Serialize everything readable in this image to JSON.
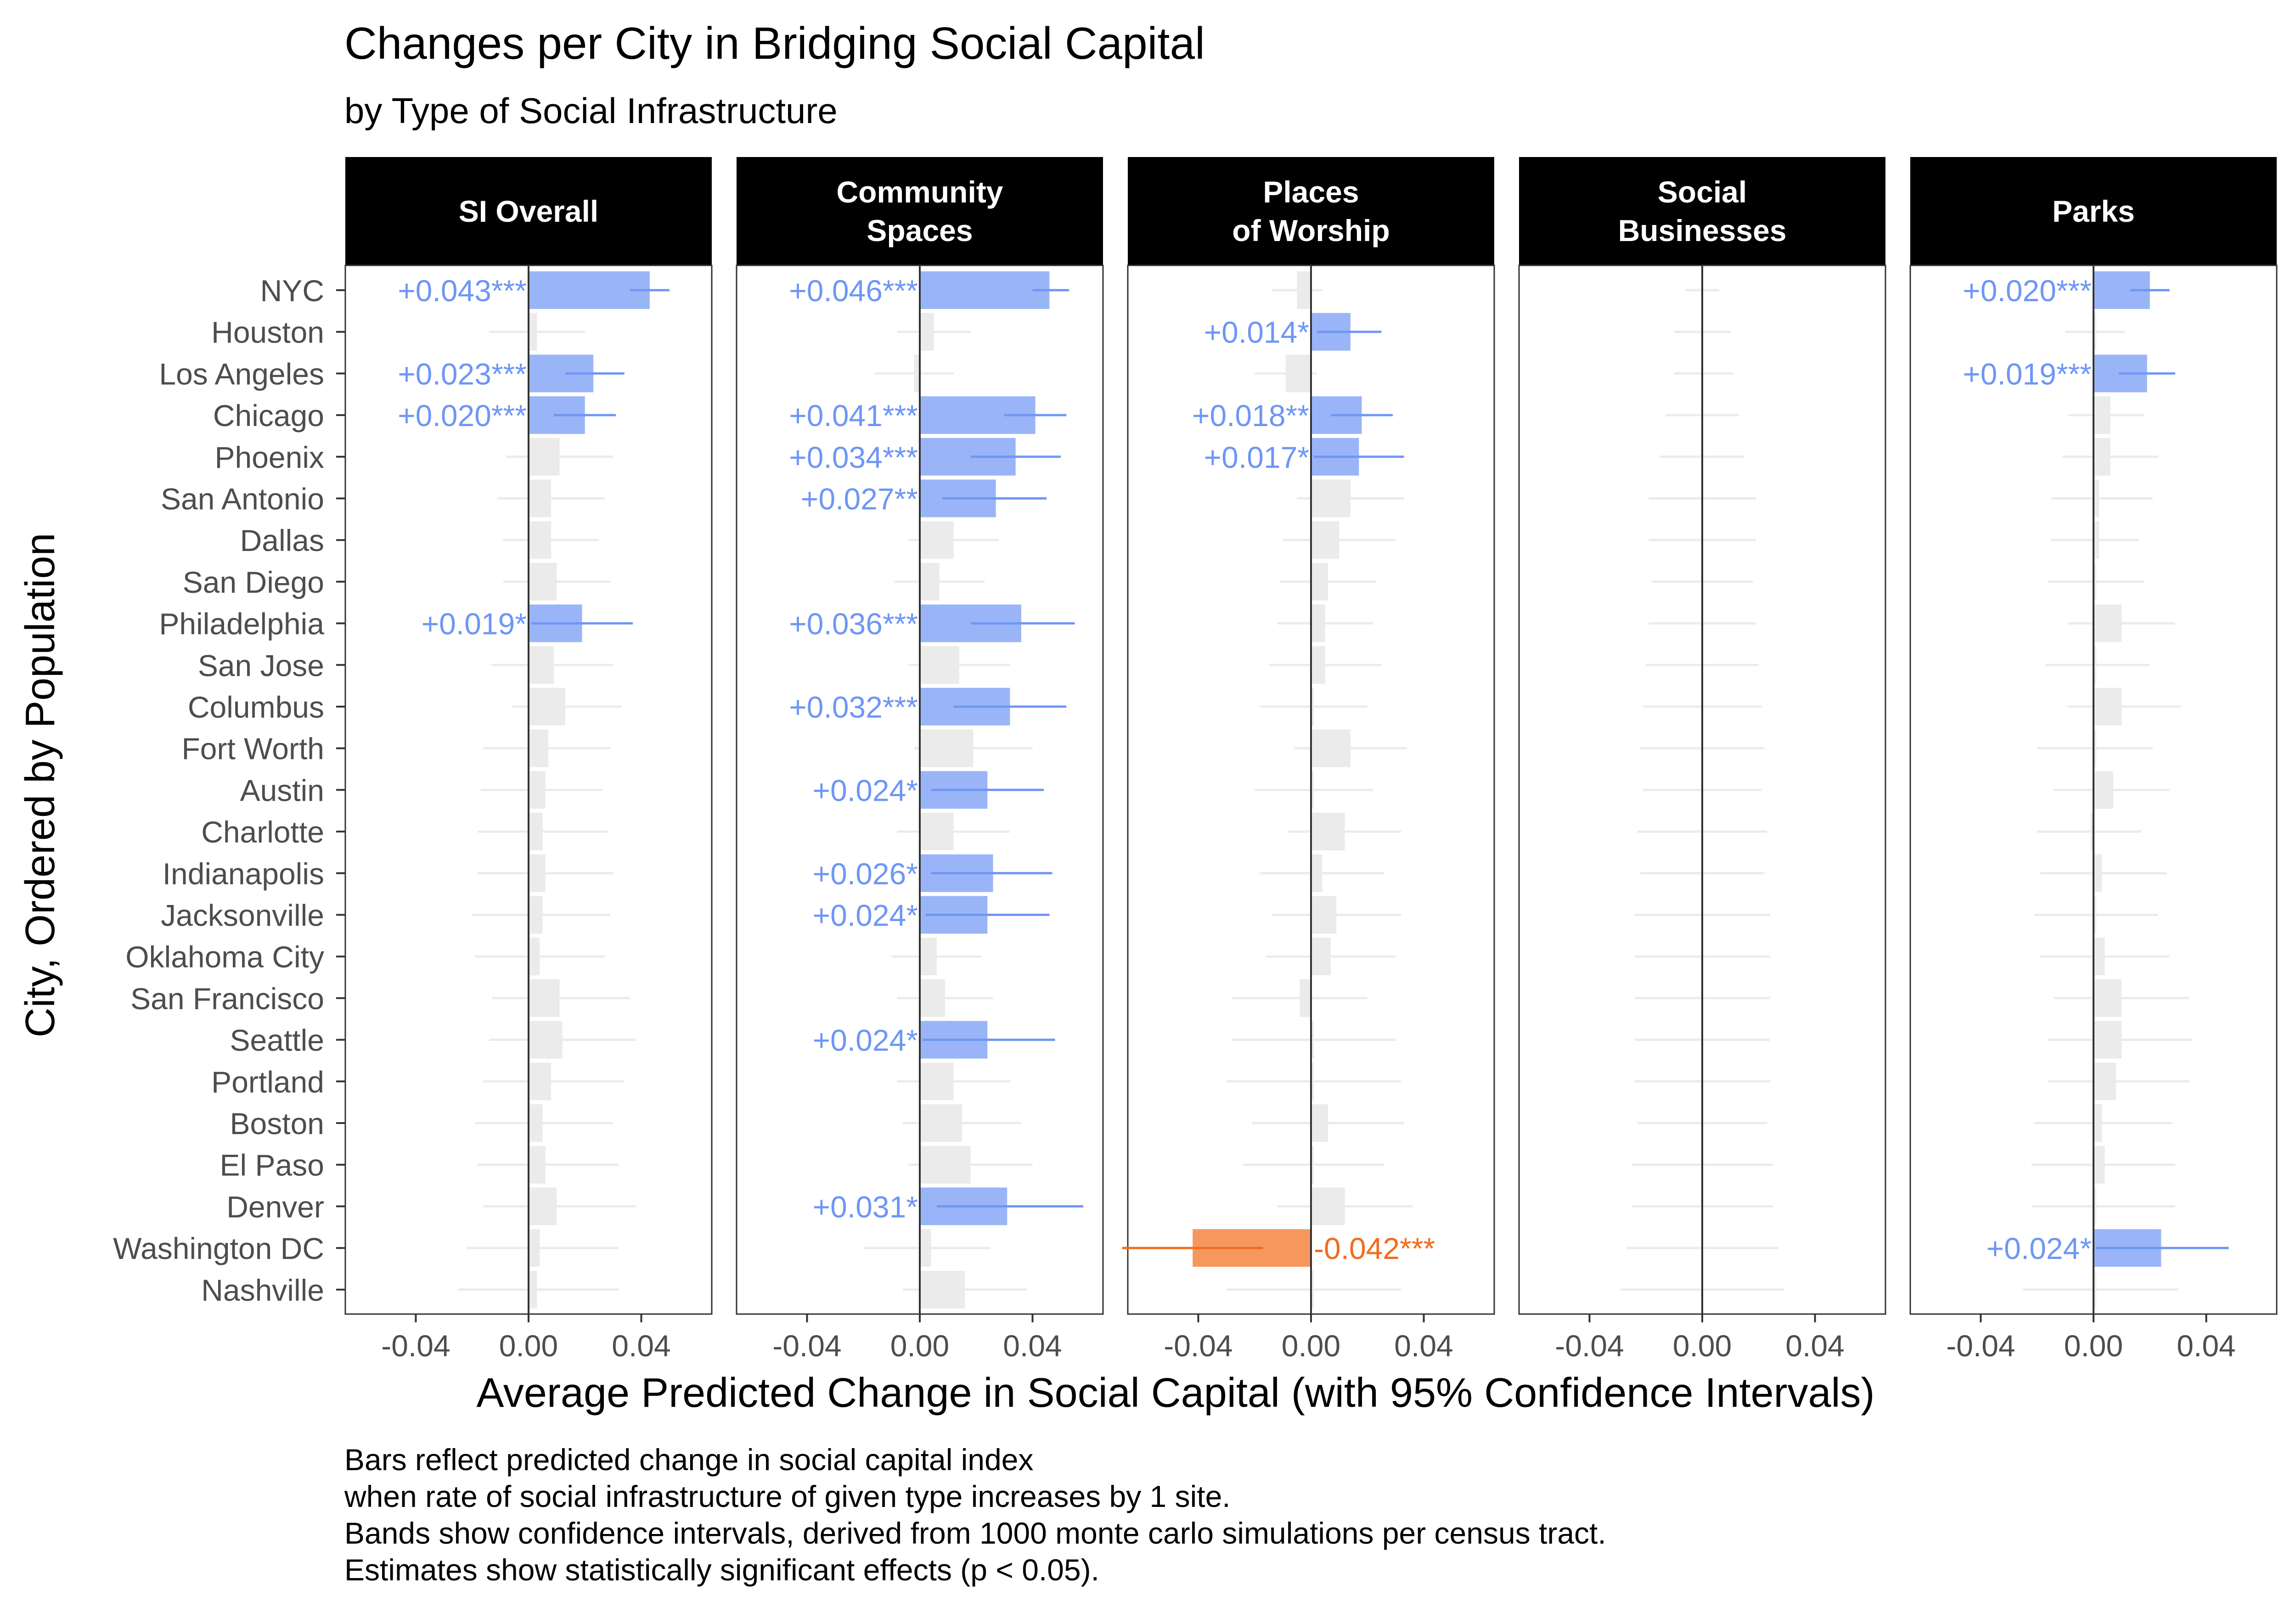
{
  "chart_data": {
    "type": "bar",
    "title": "Changes per City in Bridging Social Capital",
    "subtitle": "by Type of Social Infrastructure",
    "xlabel": "Average Predicted Change in Social Capital (with 95% Confidence Intervals)",
    "ylabel": "City, Ordered by Population",
    "xlim": [
      -0.065,
      0.065
    ],
    "xticks": [
      -0.04,
      0.0,
      0.04
    ],
    "xtick_labels": [
      "-0.04",
      "0.00",
      "0.04"
    ],
    "grid": false,
    "colors": {
      "positive": "#6E96F5",
      "positive_bar": "#9AB5F7",
      "negative": "#F26B1D",
      "negative_bar": "#F6985E",
      "nonsignificant": "#EBEBEB",
      "strip": "#000000",
      "zero_line": "#333333"
    },
    "categories": [
      "NYC",
      "Houston",
      "Los Angeles",
      "Chicago",
      "Phoenix",
      "San Antonio",
      "Dallas",
      "San Diego",
      "Philadelphia",
      "San Jose",
      "Columbus",
      "Fort Worth",
      "Austin",
      "Charlotte",
      "Indianapolis",
      "Jacksonville",
      "Oklahoma City",
      "San Francisco",
      "Seattle",
      "Portland",
      "Boston",
      "El Paso",
      "Denver",
      "Washington DC",
      "Nashville"
    ],
    "panels": [
      {
        "name": "SI Overall",
        "strip": [
          "SI Overall"
        ],
        "estimates": [
          0.043,
          0.003,
          0.023,
          0.02,
          0.011,
          0.008,
          0.008,
          0.01,
          0.019,
          0.009,
          0.013,
          0.007,
          0.006,
          0.005,
          0.006,
          0.005,
          0.004,
          0.011,
          0.012,
          0.008,
          0.005,
          0.006,
          0.01,
          0.004,
          0.003
        ],
        "lower": [
          0.036,
          -0.014,
          0.013,
          0.009,
          -0.008,
          -0.011,
          -0.009,
          -0.009,
          0.001,
          -0.013,
          -0.006,
          -0.016,
          -0.017,
          -0.018,
          -0.018,
          -0.02,
          -0.019,
          -0.013,
          -0.014,
          -0.016,
          -0.019,
          -0.018,
          -0.016,
          -0.022,
          -0.025
        ],
        "upper": [
          0.05,
          0.02,
          0.034,
          0.031,
          0.03,
          0.027,
          0.025,
          0.029,
          0.037,
          0.03,
          0.033,
          0.029,
          0.026,
          0.028,
          0.03,
          0.029,
          0.027,
          0.036,
          0.038,
          0.034,
          0.03,
          0.032,
          0.038,
          0.032,
          0.032
        ],
        "significance": [
          "pos",
          "ns",
          "pos",
          "pos",
          "ns",
          "ns",
          "ns",
          "ns",
          "pos",
          "ns",
          "ns",
          "ns",
          "ns",
          "ns",
          "ns",
          "ns",
          "ns",
          "ns",
          "ns",
          "ns",
          "ns",
          "ns",
          "ns",
          "ns",
          "ns"
        ],
        "labels": [
          "+0.043***",
          "",
          "+0.023***",
          "+0.020***",
          "",
          "",
          "",
          "",
          "+0.019*",
          "",
          "",
          "",
          "",
          "",
          "",
          "",
          "",
          "",
          "",
          "",
          "",
          "",
          "",
          "",
          ""
        ]
      },
      {
        "name": "Community Spaces",
        "strip": [
          "Community",
          "Spaces"
        ],
        "estimates": [
          0.046,
          0.005,
          -0.002,
          0.041,
          0.034,
          0.027,
          0.012,
          0.007,
          0.036,
          0.014,
          0.032,
          0.019,
          0.024,
          0.012,
          0.026,
          0.024,
          0.006,
          0.009,
          0.024,
          0.012,
          0.015,
          0.018,
          0.031,
          0.004,
          0.016
        ],
        "lower": [
          0.04,
          -0.008,
          -0.016,
          0.03,
          0.018,
          0.008,
          -0.004,
          -0.009,
          0.018,
          -0.004,
          0.012,
          -0.002,
          0.004,
          -0.008,
          0.004,
          0.002,
          -0.01,
          -0.008,
          0.001,
          -0.008,
          -0.006,
          -0.004,
          0.006,
          -0.02,
          -0.006
        ],
        "upper": [
          0.053,
          0.018,
          0.012,
          0.052,
          0.05,
          0.045,
          0.028,
          0.023,
          0.055,
          0.032,
          0.052,
          0.04,
          0.044,
          0.032,
          0.047,
          0.046,
          0.022,
          0.026,
          0.048,
          0.032,
          0.036,
          0.04,
          0.058,
          0.025,
          0.038
        ],
        "significance": [
          "pos",
          "ns",
          "ns",
          "pos",
          "pos",
          "pos",
          "ns",
          "ns",
          "pos",
          "ns",
          "pos",
          "ns",
          "pos",
          "ns",
          "pos",
          "pos",
          "ns",
          "ns",
          "pos",
          "ns",
          "ns",
          "ns",
          "pos",
          "ns",
          "ns"
        ],
        "labels": [
          "+0.046***",
          "",
          "",
          "+0.041***",
          "+0.034***",
          "+0.027**",
          "",
          "",
          "+0.036***",
          "",
          "+0.032***",
          "",
          "+0.024*",
          "",
          "+0.026*",
          "+0.024*",
          "",
          "",
          "+0.024*",
          "",
          "",
          "",
          "+0.031*",
          "",
          ""
        ]
      },
      {
        "name": "Places of Worship",
        "strip": [
          "Places",
          "of Worship"
        ],
        "estimates": [
          -0.005,
          0.014,
          -0.009,
          0.018,
          0.017,
          0.014,
          0.01,
          0.006,
          0.005,
          0.005,
          0.001,
          0.014,
          0.001,
          0.012,
          0.004,
          0.009,
          0.007,
          -0.004,
          0.001,
          0.001,
          0.006,
          0.001,
          0.012,
          -0.042,
          0.001
        ],
        "lower": [
          -0.014,
          0.002,
          -0.02,
          0.007,
          0.001,
          -0.005,
          -0.01,
          -0.011,
          -0.012,
          -0.015,
          -0.018,
          -0.006,
          -0.02,
          -0.008,
          -0.018,
          -0.014,
          -0.016,
          -0.028,
          -0.028,
          -0.03,
          -0.021,
          -0.024,
          -0.012,
          -0.067,
          -0.03
        ],
        "upper": [
          0.004,
          0.025,
          0.002,
          0.029,
          0.033,
          0.033,
          0.03,
          0.023,
          0.022,
          0.025,
          0.02,
          0.034,
          0.022,
          0.032,
          0.026,
          0.032,
          0.03,
          0.02,
          0.03,
          0.032,
          0.033,
          0.026,
          0.036,
          -0.017,
          0.032
        ],
        "significance": [
          "ns",
          "pos",
          "ns",
          "pos",
          "pos",
          "ns",
          "ns",
          "ns",
          "ns",
          "ns",
          "ns",
          "ns",
          "ns",
          "ns",
          "ns",
          "ns",
          "ns",
          "ns",
          "ns",
          "ns",
          "ns",
          "ns",
          "ns",
          "neg",
          "ns"
        ],
        "labels": [
          "",
          "+0.014*",
          "",
          "+0.018**",
          "+0.017*",
          "",
          "",
          "",
          "",
          "",
          "",
          "",
          "",
          "",
          "",
          "",
          "",
          "",
          "",
          "",
          "",
          "",
          "",
          "-0.042***",
          ""
        ]
      },
      {
        "name": "Social Businesses",
        "strip": [
          "Social",
          "Businesses"
        ],
        "estimates": [
          -0.0005,
          -0.0005,
          -0.0005,
          -0.0005,
          -0.0005,
          -0.0005,
          -0.0005,
          -0.0005,
          -0.0005,
          -0.0005,
          -0.0005,
          -0.0005,
          -0.0005,
          -0.0005,
          -0.0005,
          -0.0005,
          -0.0005,
          -0.0005,
          -0.0005,
          -0.0005,
          -0.0005,
          -0.0005,
          -0.0005,
          -0.0005,
          -0.0005
        ],
        "lower": [
          -0.006,
          -0.01,
          -0.01,
          -0.013,
          -0.015,
          -0.019,
          -0.019,
          -0.018,
          -0.019,
          -0.02,
          -0.021,
          -0.022,
          -0.021,
          -0.023,
          -0.022,
          -0.024,
          -0.024,
          -0.024,
          -0.024,
          -0.024,
          -0.023,
          -0.025,
          -0.025,
          -0.027,
          -0.029
        ],
        "upper": [
          0.006,
          0.01,
          0.011,
          0.013,
          0.015,
          0.019,
          0.019,
          0.018,
          0.019,
          0.02,
          0.021,
          0.022,
          0.021,
          0.023,
          0.022,
          0.024,
          0.024,
          0.024,
          0.024,
          0.024,
          0.023,
          0.025,
          0.025,
          0.027,
          0.029
        ],
        "significance": [
          "ns",
          "ns",
          "ns",
          "ns",
          "ns",
          "ns",
          "ns",
          "ns",
          "ns",
          "ns",
          "ns",
          "ns",
          "ns",
          "ns",
          "ns",
          "ns",
          "ns",
          "ns",
          "ns",
          "ns",
          "ns",
          "ns",
          "ns",
          "ns",
          "ns"
        ],
        "labels": [
          "",
          "",
          "",
          "",
          "",
          "",
          "",
          "",
          "",
          "",
          "",
          "",
          "",
          "",
          "",
          "",
          "",
          "",
          "",
          "",
          "",
          "",
          "",
          "",
          ""
        ]
      },
      {
        "name": "Parks",
        "strip": [
          "Parks"
        ],
        "estimates": [
          0.02,
          0.001,
          0.019,
          0.006,
          0.006,
          0.002,
          0.002,
          0.001,
          0.01,
          0.001,
          0.01,
          0.001,
          0.007,
          -0.001,
          0.003,
          0.001,
          0.004,
          0.01,
          0.01,
          0.008,
          0.003,
          0.004,
          0.001,
          0.024,
          0.001
        ],
        "lower": [
          0.013,
          -0.01,
          0.009,
          -0.009,
          -0.011,
          -0.015,
          -0.015,
          -0.016,
          -0.009,
          -0.017,
          -0.009,
          -0.02,
          -0.014,
          -0.02,
          -0.019,
          -0.021,
          -0.019,
          -0.014,
          -0.016,
          -0.016,
          -0.021,
          -0.022,
          -0.022,
          0.001,
          -0.025
        ],
        "upper": [
          0.027,
          0.011,
          0.029,
          0.018,
          0.023,
          0.021,
          0.016,
          0.018,
          0.029,
          0.02,
          0.031,
          0.021,
          0.027,
          0.017,
          0.026,
          0.023,
          0.027,
          0.034,
          0.035,
          0.034,
          0.028,
          0.029,
          0.029,
          0.048,
          0.03
        ],
        "significance": [
          "pos",
          "ns",
          "pos",
          "ns",
          "ns",
          "ns",
          "ns",
          "ns",
          "ns",
          "ns",
          "ns",
          "ns",
          "ns",
          "ns",
          "ns",
          "ns",
          "ns",
          "ns",
          "ns",
          "ns",
          "ns",
          "ns",
          "ns",
          "pos",
          "ns"
        ],
        "labels": [
          "+0.020***",
          "",
          "+0.019***",
          "",
          "",
          "",
          "",
          "",
          "",
          "",
          "",
          "",
          "",
          "",
          "",
          "",
          "",
          "",
          "",
          "",
          "",
          "",
          "",
          "+0.024*",
          ""
        ]
      }
    ]
  },
  "caption": [
    "Bars reflect predicted change in social capital index",
    "when rate of social infrastructure of given type increases by 1 site.",
    "Bands show confidence intervals, derived from 1000 monte carlo simulations per census tract.",
    "Estimates show statistically significant effects (p < 0.05)."
  ]
}
